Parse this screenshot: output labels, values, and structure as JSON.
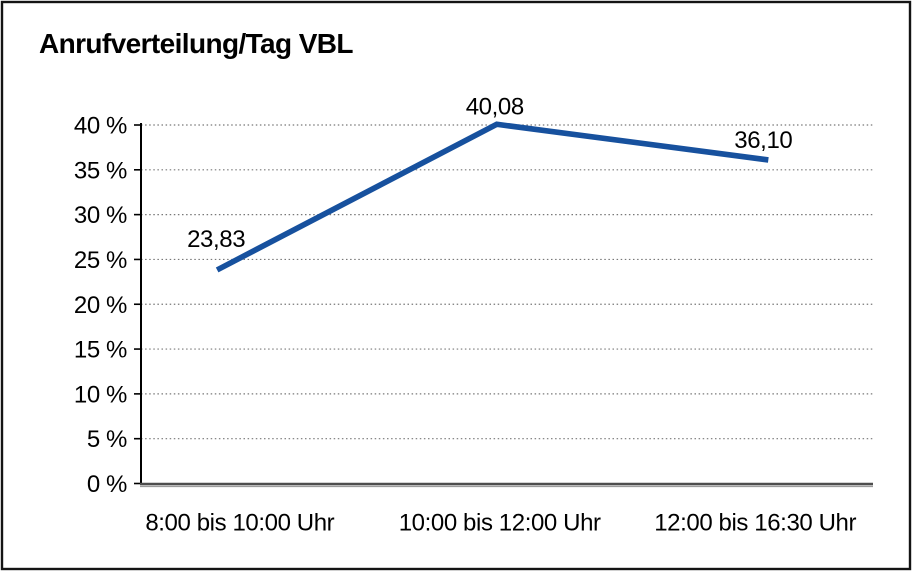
{
  "panel": {
    "background": "#FFFFFF",
    "border_color": "#141414"
  },
  "chart_data": {
    "type": "line",
    "title": "Anrufverteilung/Tag VBL",
    "categories": [
      "8:00 bis 10:00 Uhr",
      "10:00 bis 12:00 Uhr",
      "12:00 bis 16:30 Uhr"
    ],
    "values": [
      23.83,
      40.08,
      36.1
    ],
    "data_labels": [
      "23,83",
      "40,08",
      "36,10"
    ],
    "y_ticks": [
      0,
      5,
      10,
      15,
      20,
      25,
      30,
      35,
      40
    ],
    "y_tick_labels": [
      "0 %",
      "5 %",
      "10 %",
      "15 %",
      "20 %",
      "25 %",
      "30 %",
      "35 %",
      "40 %"
    ],
    "ylim": [
      0,
      40
    ],
    "xlabel": "",
    "ylabel": "",
    "grid": "horizontal-dotted",
    "legend": "none",
    "line_color": "#17519E",
    "text_color": "#000000",
    "gridline_color": "#787878",
    "y_axis_color": "#000000",
    "x_axis_color": "#4D4D4D",
    "x_axis_shadow_color": "#9B9B9B"
  }
}
